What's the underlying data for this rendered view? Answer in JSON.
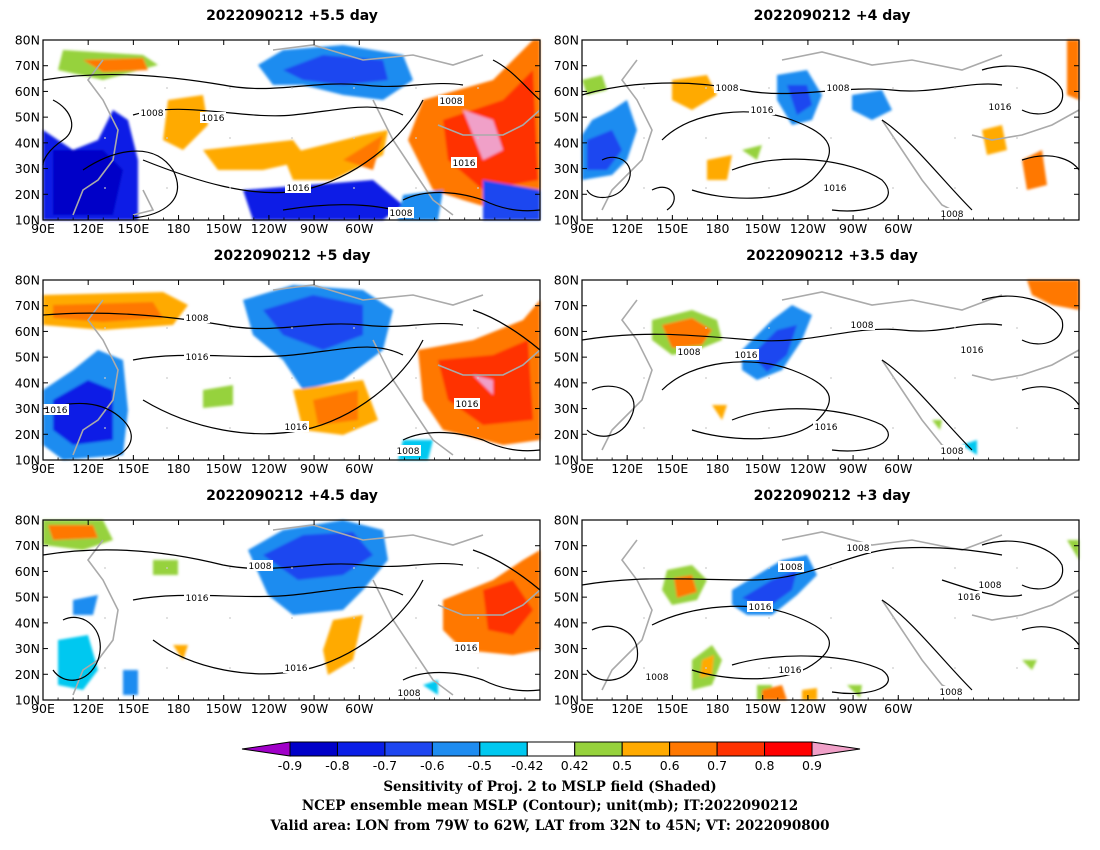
{
  "panels": [
    {
      "title": "2022090212  +5.5 day"
    },
    {
      "title": "2022090212  +4 day"
    },
    {
      "title": "2022090212  +5 day"
    },
    {
      "title": "2022090212  +3.5 day"
    },
    {
      "title": "2022090212  +4.5 day"
    },
    {
      "title": "2022090212  +3 day"
    }
  ],
  "axes": {
    "x_ticks": [
      "90E",
      "120E",
      "150E",
      "180",
      "150W",
      "120W",
      "90W",
      "60W"
    ],
    "y_ticks": [
      "80N",
      "70N",
      "60N",
      "50N",
      "40N",
      "30N",
      "20N",
      "10N"
    ]
  },
  "colorbar": {
    "labels": [
      "-0.9",
      "-0.8",
      "-0.7",
      "-0.6",
      "-0.5",
      "-0.42",
      "0.42",
      "0.5",
      "0.6",
      "0.7",
      "0.8",
      "0.9"
    ],
    "colors": [
      "#a000c8",
      "#0000c8",
      "#0a1ee6",
      "#1e46f0",
      "#1e8cf0",
      "#00c8f0",
      "#ffffff",
      "#96d23c",
      "#ffaa00",
      "#ff7800",
      "#ff3200",
      "#ff0000",
      "#f0a0c8"
    ]
  },
  "contour_labels": [
    "1008",
    "1016"
  ],
  "caption": {
    "line1": "Sensitivity of Proj. 2 to MSLP field (Shaded)",
    "line2": "NCEP ensemble mean MSLP (Contour); unit(mb); IT:2022090212",
    "line3": "Valid area: LON from 79W to 62W, LAT from 32N to 45N; VT: 2022090800"
  }
}
